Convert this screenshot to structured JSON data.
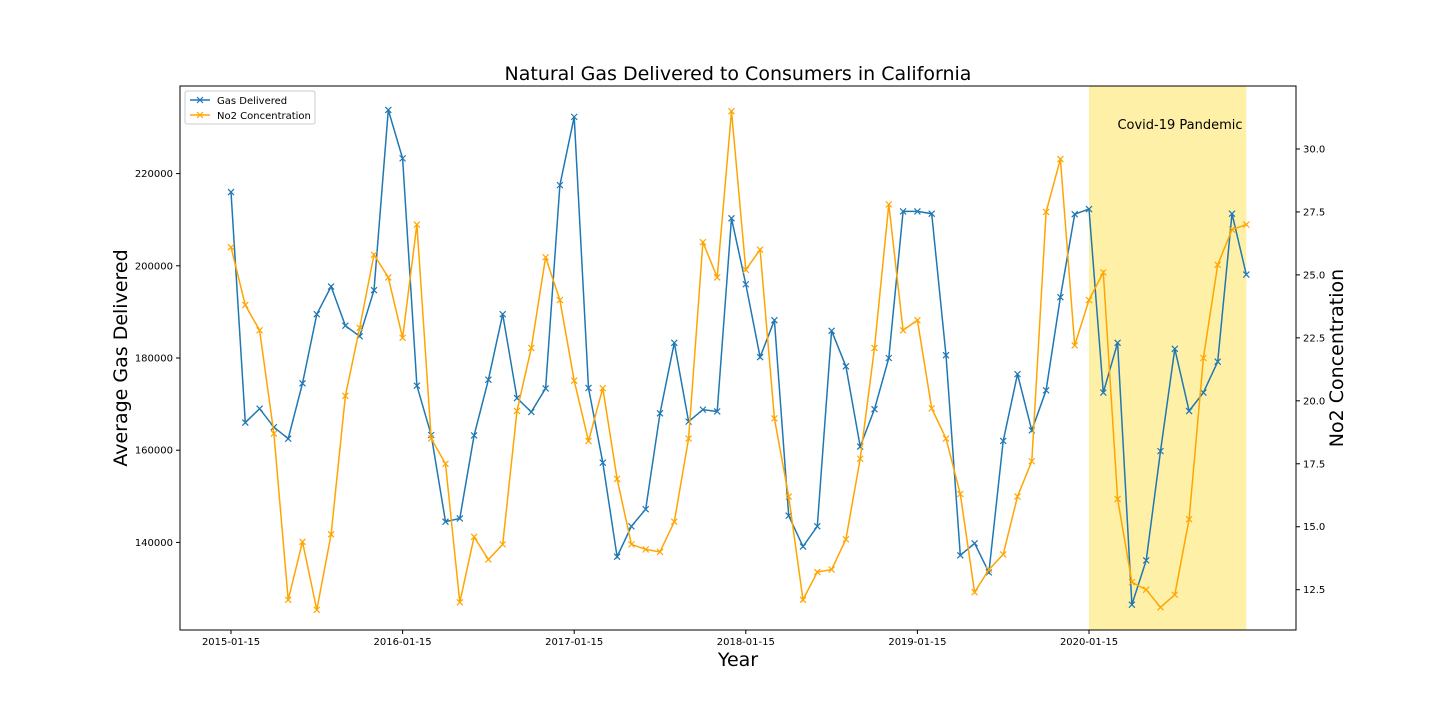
{
  "chart_data": {
    "type": "line",
    "title": "Natural Gas Delivered to Consumers in California",
    "xlabel": "Year",
    "ylabel": "Average Gas Delivered",
    "y2label": "No2 Concentration",
    "x_tick_labels": [
      "2015-01-15",
      "2016-01-15",
      "2017-01-15",
      "2018-01-15",
      "2019-01-15",
      "2020-01-15"
    ],
    "x": [
      "2015-01-15",
      "2015-02-15",
      "2015-03-15",
      "2015-04-15",
      "2015-05-15",
      "2015-06-15",
      "2015-07-15",
      "2015-08-15",
      "2015-09-15",
      "2015-10-15",
      "2015-11-15",
      "2015-12-15",
      "2016-01-15",
      "2016-02-15",
      "2016-03-15",
      "2016-04-15",
      "2016-05-15",
      "2016-06-15",
      "2016-07-15",
      "2016-08-15",
      "2016-09-15",
      "2016-10-15",
      "2016-11-15",
      "2016-12-15",
      "2017-01-15",
      "2017-02-15",
      "2017-03-15",
      "2017-04-15",
      "2017-05-15",
      "2017-06-15",
      "2017-07-15",
      "2017-08-15",
      "2017-09-15",
      "2017-10-15",
      "2017-11-15",
      "2017-12-15",
      "2018-01-15",
      "2018-02-15",
      "2018-03-15",
      "2018-04-15",
      "2018-05-15",
      "2018-06-15",
      "2018-07-15",
      "2018-08-15",
      "2018-09-15",
      "2018-10-15",
      "2018-11-15",
      "2018-12-15",
      "2019-01-15",
      "2019-02-15",
      "2019-03-15",
      "2019-04-15",
      "2019-05-15",
      "2019-06-15",
      "2019-07-15",
      "2019-08-15",
      "2019-09-15",
      "2019-10-15",
      "2019-11-15",
      "2019-12-15",
      "2020-01-15",
      "2020-02-15",
      "2020-03-15",
      "2020-04-15",
      "2020-05-15",
      "2020-06-15",
      "2020-07-15",
      "2020-08-15",
      "2020-09-15",
      "2020-10-15",
      "2020-11-15",
      "2020-12-15"
    ],
    "yticks": [
      140000,
      160000,
      180000,
      200000,
      220000
    ],
    "y_tick_labels": [
      "140000",
      "160000",
      "180000",
      "200000",
      "220000"
    ],
    "ylim": [
      121000,
      239000
    ],
    "y2ticks": [
      12.5,
      15.0,
      17.5,
      20.0,
      22.5,
      25.0,
      27.5,
      30.0
    ],
    "y2_tick_labels": [
      "12.5",
      "15.0",
      "17.5",
      "20.0",
      "22.5",
      "25.0",
      "27.5",
      "30.0"
    ],
    "y2lim": [
      10.9,
      32.5
    ],
    "legend_position": "top-left",
    "grid": false,
    "series": [
      {
        "name": "Gas Delivered",
        "axis": "left",
        "color": "#1f77b4",
        "marker": "x",
        "values": [
          216000,
          166000,
          169000,
          165000,
          162500,
          174500,
          189500,
          195500,
          187000,
          184700,
          194700,
          233800,
          223300,
          174000,
          163300,
          144500,
          145200,
          163200,
          175300,
          189500,
          171300,
          168300,
          173400,
          217500,
          232300,
          173500,
          157300,
          136900,
          143500,
          147200,
          168000,
          183300,
          166200,
          168800,
          168400,
          210300,
          196000,
          180200,
          188200,
          145800,
          139100,
          143500,
          185900,
          178200,
          160800,
          168900,
          180000,
          211800,
          211800,
          211300,
          180600,
          137200,
          139800,
          133500,
          162000,
          176500,
          164300,
          173000,
          193200,
          211200,
          212300,
          172500,
          183300,
          126500,
          136100,
          159800,
          182000,
          168500,
          172500,
          179200,
          211300,
          198100
        ]
      },
      {
        "name": "No2 Concentration",
        "axis": "right",
        "color": "#ffa500",
        "marker": "x",
        "values": [
          26.1,
          23.8,
          22.8,
          18.7,
          12.1,
          14.4,
          11.7,
          14.7,
          20.2,
          22.9,
          25.8,
          24.9,
          22.5,
          27.0,
          18.5,
          17.5,
          12.0,
          14.6,
          13.7,
          14.3,
          19.6,
          22.1,
          25.7,
          24.0,
          20.8,
          18.4,
          20.5,
          16.9,
          14.3,
          14.1,
          14.0,
          15.2,
          18.5,
          26.3,
          24.9,
          31.5,
          25.2,
          26.0,
          19.3,
          16.2,
          12.1,
          13.2,
          13.3,
          14.5,
          17.7,
          22.1,
          27.8,
          22.8,
          23.2,
          19.7,
          18.5,
          16.3,
          12.4,
          13.3,
          13.9,
          16.2,
          17.6,
          27.5,
          29.6,
          22.2,
          24.0,
          25.1,
          16.1,
          12.8,
          12.5,
          11.8,
          12.3,
          15.3,
          21.7,
          25.4,
          26.8,
          27.0
        ]
      }
    ],
    "annotations": [
      {
        "text": "Covid-19 Pandemic",
        "span_start": "2020-01-15",
        "span_end": "2020-12-15",
        "color": "#fff0a8"
      }
    ]
  }
}
